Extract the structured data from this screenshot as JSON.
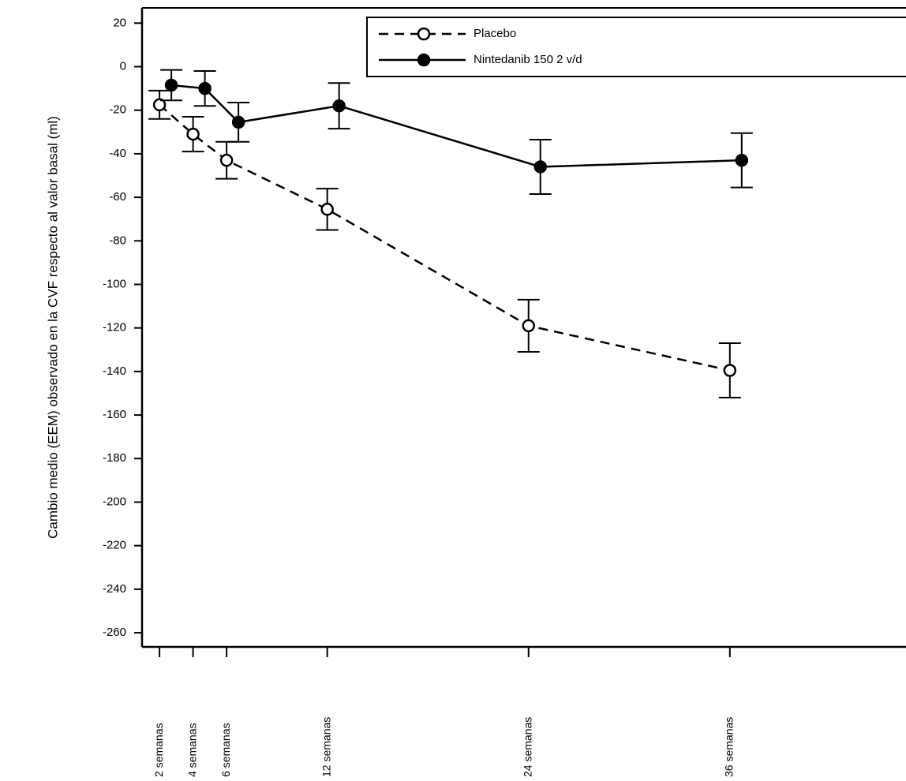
{
  "chart_data": {
    "type": "line",
    "y_label": "Cambio medio (EEM) observado en la CVF respecto al valor basal (ml)",
    "x": [
      2,
      4,
      6,
      12,
      24,
      36
    ],
    "xlim": [
      0.96,
      46.5
    ],
    "xticks": [
      {
        "value": 2,
        "label": "2 semanas"
      },
      {
        "value": 4,
        "label": "4 semanas"
      },
      {
        "value": 6,
        "label": "6 semanas"
      },
      {
        "value": 12,
        "label": "12 semanas"
      },
      {
        "value": 24,
        "label": "24 semanas"
      },
      {
        "value": 36,
        "label": "36 semanas"
      }
    ],
    "ylim": [
      -266.5,
      27
    ],
    "yticks": [
      20,
      0,
      -20,
      -40,
      -60,
      -80,
      -100,
      -120,
      -140,
      -160,
      -180,
      -200,
      -220,
      -240,
      -260
    ],
    "legend": "top-right",
    "series": [
      {
        "name": "Placebo",
        "color": "#000000",
        "dashed": true,
        "filled": false,
        "values": [
          -17.5,
          -31,
          -43,
          -65.5,
          -119,
          -139.5
        ],
        "errors": [
          6.5,
          8,
          8.5,
          9.5,
          12,
          12.5
        ]
      },
      {
        "name": "Nintedanib 150 2 v/d",
        "color": "#000000",
        "dashed": false,
        "filled": true,
        "values": [
          -8.5,
          -10,
          -25.5,
          -18,
          -46,
          -43
        ],
        "errors": [
          7,
          8,
          9,
          10.5,
          12.5,
          12.5
        ]
      }
    ]
  }
}
